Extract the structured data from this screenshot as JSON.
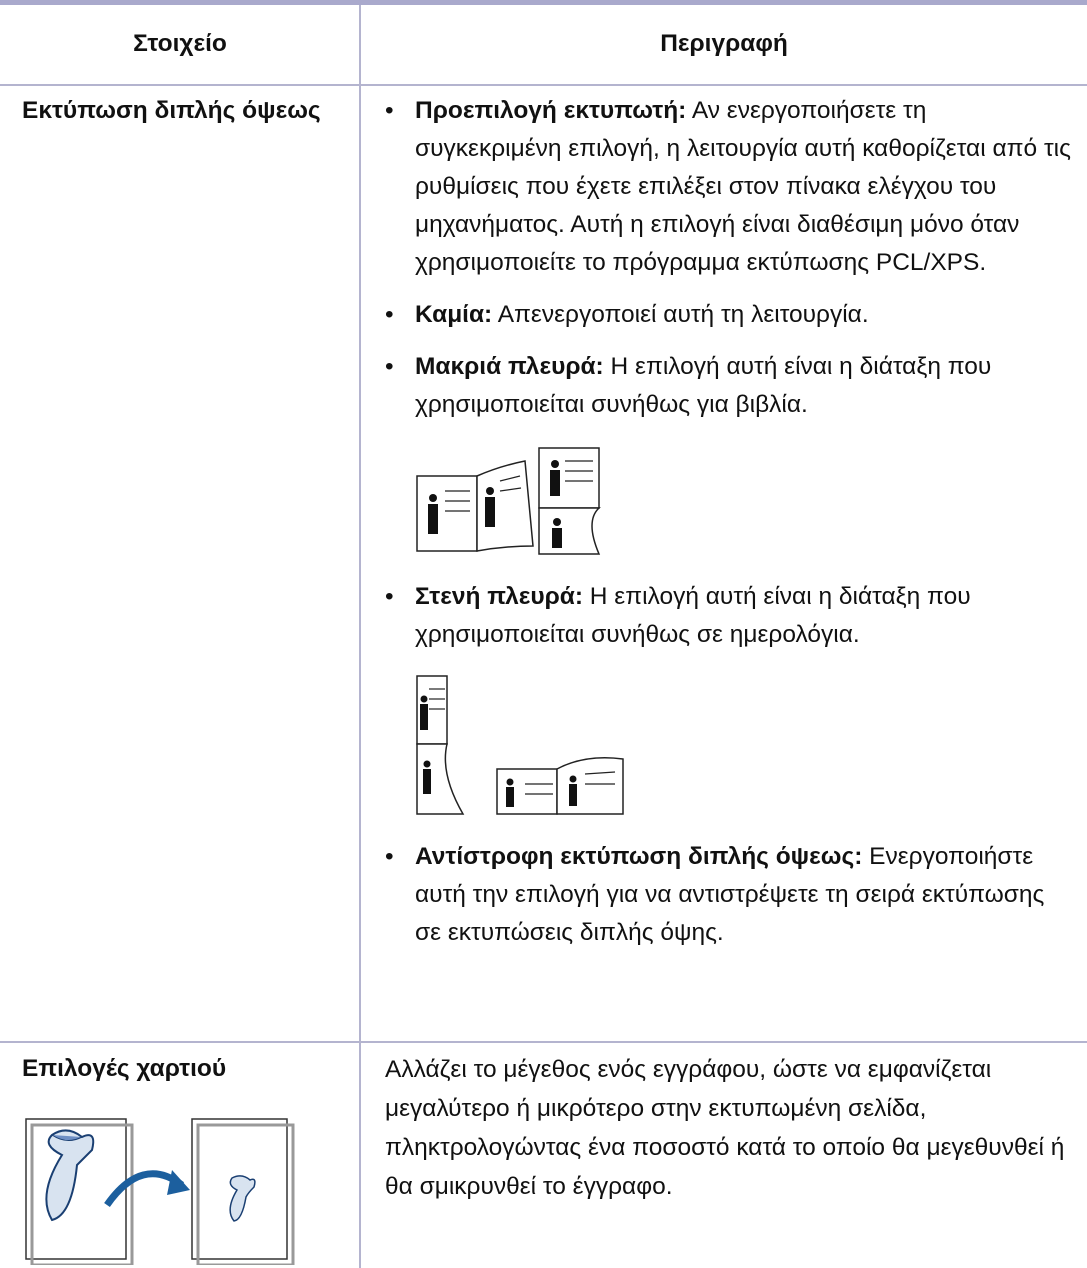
{
  "table": {
    "header": [
      "Στοιχείο",
      "Περιγραφή"
    ],
    "rows": [
      {
        "item": "Εκτύπωση διπλής όψεως",
        "bullets": [
          {
            "term": "Προεπιλογή εκτυπωτή:",
            "text": "Αν ενεργοποιήσετε τη συγκεκριμένη επιλογή, η λειτουργία αυτή καθορίζεται από τις ρυθμίσεις που έχετε επιλέξει στον πίνακα ελέγχου του μηχανήματος. Αυτή η επιλογή είναι διαθέσιμη μόνο όταν χρησιμοποιείτε το πρόγραμμα εκτύπωσης PCL/XPS."
          },
          {
            "term": "Καμία:",
            "text": "Απενεργοποιεί αυτή τη λειτουργία."
          },
          {
            "term": "Μακριά πλευρά:",
            "text": "Η επιλογή αυτή είναι η διάταξη που χρησιμοποιείται συνήθως για βιβλία."
          },
          {
            "term": "Στενή πλευρά:",
            "text": "Η επιλογή αυτή είναι η διάταξη που χρησιμοποιείται συνήθως σε ημερολόγια."
          },
          {
            "term": "Αντίστροφη εκτύπωση διπλής όψεως:",
            "text": "Ενεργοποιήστε αυτή την επιλογή για να αντιστρέψετε τη σειρά εκτύπωσης σε εκτυπώσεις διπλής όψης."
          }
        ]
      },
      {
        "item": "Επιλογές χαρτιού",
        "description": "Αλλάζει το μέγεθος ενός εγγράφου, ώστε να εμφανίζεται μεγαλύτερο ή μικρότερο στην εκτυπωμένη σελίδα, πληκτρολογώντας ένα ποσοστό κατά το οποίο θα μεγεθυνθεί ή θα σμικρυνθεί το έγγραφο."
      }
    ]
  }
}
